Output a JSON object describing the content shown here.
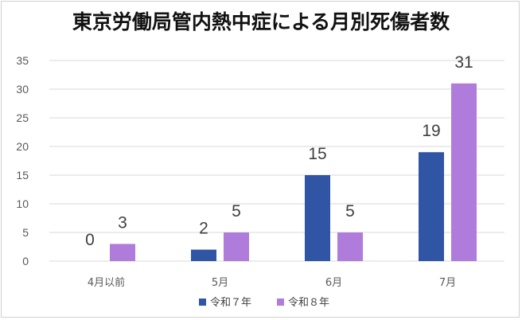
{
  "chart_data": {
    "type": "bar",
    "title": "東京労働局管内熱中症による月別死傷者数",
    "categories": [
      "4月以前",
      "5月",
      "6月",
      "7月"
    ],
    "series": [
      {
        "name": "令和７年",
        "values": [
          0,
          2,
          15,
          19
        ],
        "color": "#2f55a4"
      },
      {
        "name": "令和８年",
        "values": [
          3,
          5,
          5,
          31
        ],
        "color": "#b07cdb"
      }
    ],
    "ylim": [
      0,
      35
    ],
    "yticks": [
      0,
      5,
      10,
      15,
      20,
      25,
      30,
      35
    ],
    "grid": true,
    "legend": "bottom"
  }
}
